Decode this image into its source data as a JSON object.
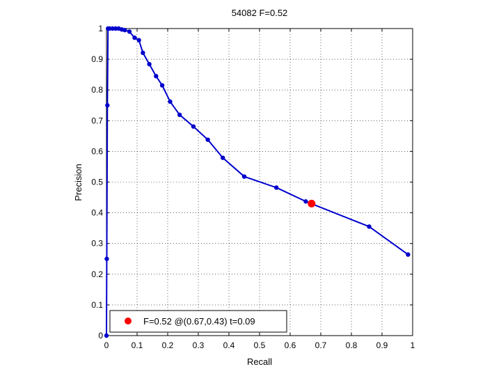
{
  "chart_data": {
    "type": "line",
    "title": "54082 F=0.52",
    "xlabel": "Recall",
    "ylabel": "Precision",
    "xlim": [
      0,
      1
    ],
    "ylim": [
      0,
      1
    ],
    "xticks": [
      "0",
      "0.1",
      "0.2",
      "0.3",
      "0.4",
      "0.5",
      "0.6",
      "0.7",
      "0.8",
      "0.9",
      "1"
    ],
    "yticks": [
      "0",
      "0.1",
      "0.2",
      "0.3",
      "0.4",
      "0.5",
      "0.6",
      "0.7",
      "0.8",
      "0.9",
      "1"
    ],
    "grid": true,
    "legend_position": "bottom-left",
    "series": [
      {
        "color": "#0000cc",
        "points": [
          [
            0.0,
            0.0
          ],
          [
            0.001,
            0.25
          ],
          [
            0.003,
            0.75
          ],
          [
            0.005,
            1.0
          ],
          [
            0.01,
            1.0
          ],
          [
            0.02,
            1.0
          ],
          [
            0.03,
            1.0
          ],
          [
            0.04,
            1.0
          ],
          [
            0.05,
            0.997
          ],
          [
            0.06,
            0.995
          ],
          [
            0.075,
            0.99
          ],
          [
            0.092,
            0.97
          ],
          [
            0.106,
            0.962
          ],
          [
            0.119,
            0.921
          ],
          [
            0.14,
            0.884
          ],
          [
            0.162,
            0.845
          ],
          [
            0.182,
            0.815
          ],
          [
            0.208,
            0.762
          ],
          [
            0.239,
            0.719
          ],
          [
            0.284,
            0.681
          ],
          [
            0.331,
            0.638
          ],
          [
            0.38,
            0.579
          ],
          [
            0.45,
            0.518
          ],
          [
            0.555,
            0.482
          ],
          [
            0.651,
            0.437
          ],
          [
            0.858,
            0.355
          ],
          [
            0.985,
            0.264
          ]
        ]
      }
    ],
    "highlight": {
      "x": 0.67,
      "y": 0.43,
      "color": "#ff0000",
      "label": "F=0.52 @(0.67,0.43) t=0.09"
    }
  }
}
